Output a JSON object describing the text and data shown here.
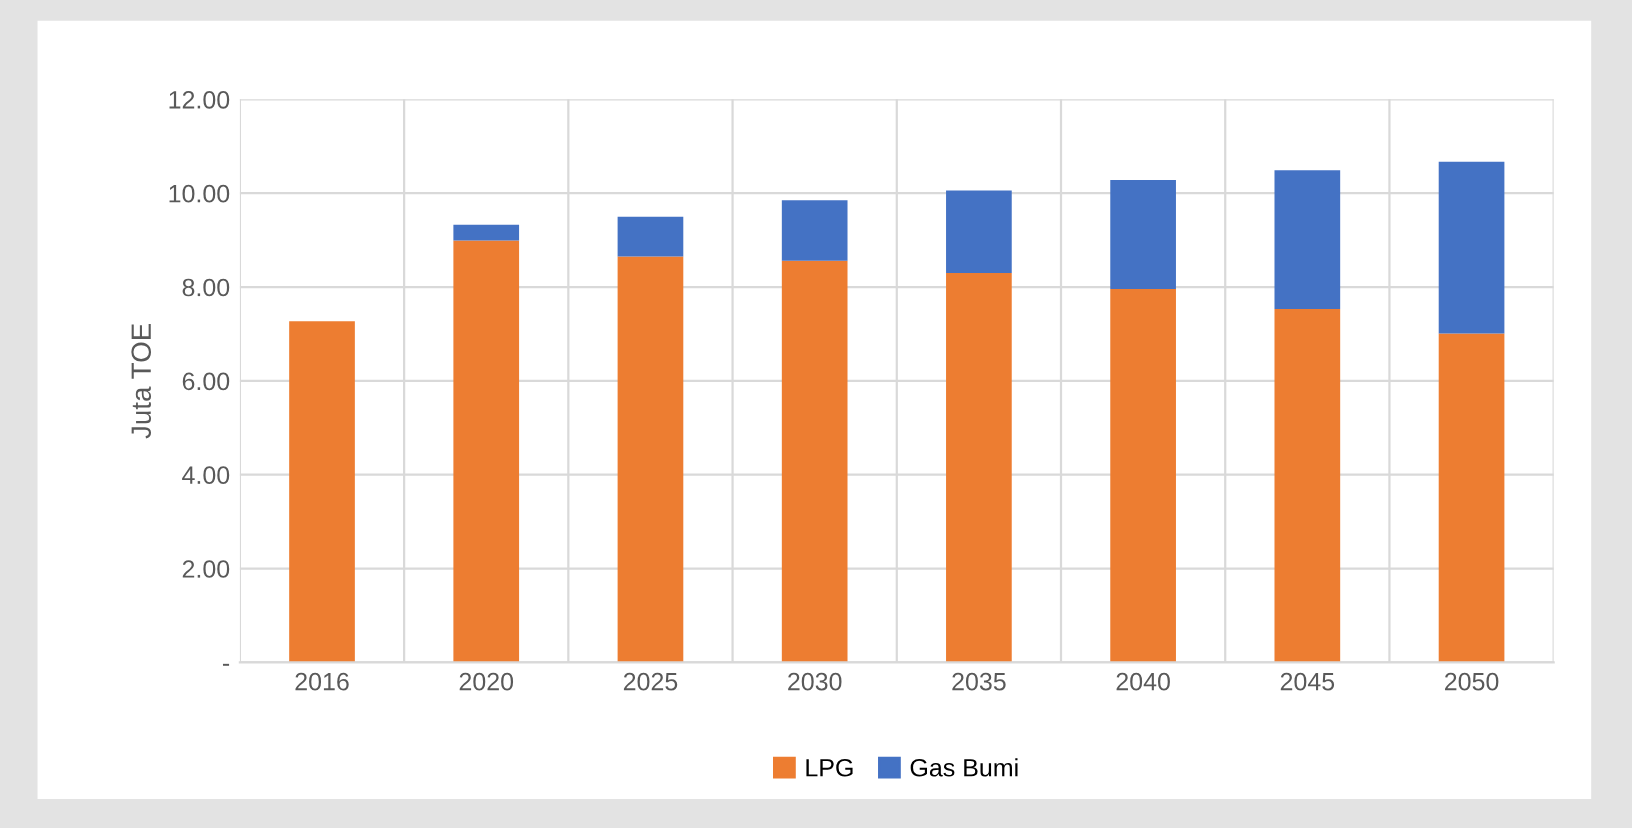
{
  "chart_data": {
    "type": "bar",
    "stacked": true,
    "ylabel": "Juta TOE",
    "categories": [
      "2016",
      "2020",
      "2025",
      "2030",
      "2035",
      "2040",
      "2045",
      "2050"
    ],
    "series": [
      {
        "name": "LPG",
        "color": "#ed7d31",
        "values": [
          7.27,
          8.99,
          8.65,
          8.56,
          8.3,
          7.96,
          7.53,
          7.01
        ]
      },
      {
        "name": "Gas Bumi",
        "color": "#4472c4",
        "values": [
          0,
          0.34,
          0.85,
          1.29,
          1.76,
          2.32,
          2.96,
          3.66
        ]
      }
    ],
    "ylim": [
      0,
      12
    ],
    "yticks": [
      {
        "value": 0,
        "label": "-"
      },
      {
        "value": 2,
        "label": "2.00"
      },
      {
        "value": 4,
        "label": "4.00"
      },
      {
        "value": 6,
        "label": "6.00"
      },
      {
        "value": 8,
        "label": "8.00"
      },
      {
        "value": 10,
        "label": "10.00"
      },
      {
        "value": 12,
        "label": "12.00"
      }
    ],
    "grid": true,
    "legend": "bottom"
  }
}
